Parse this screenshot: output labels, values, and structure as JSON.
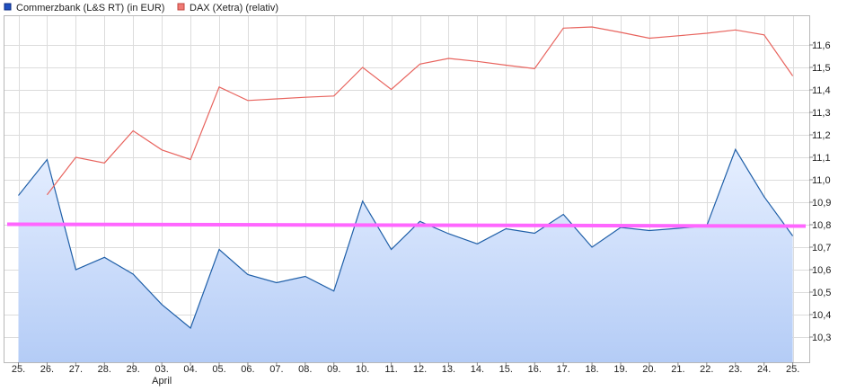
{
  "chart_data": {
    "type": "line",
    "categories": [
      "25.",
      "26.",
      "27.",
      "28.",
      "29.",
      "03.",
      "04.",
      "05.",
      "06.",
      "07.",
      "08.",
      "09.",
      "10.",
      "11.",
      "12.",
      "13.",
      "14.",
      "15.",
      "16.",
      "17.",
      "18.",
      "19.",
      "20.",
      "21.",
      "22.",
      "23.",
      "24.",
      "25."
    ],
    "month_label": "April",
    "series": [
      {
        "name": "Commerzbank (L&S RT) (in EUR)",
        "color": "#1f5fa8",
        "fill": true,
        "values": [
          10.93,
          11.09,
          10.6,
          10.655,
          10.58,
          10.445,
          10.34,
          10.69,
          10.578,
          10.542,
          10.57,
          10.505,
          10.905,
          10.69,
          10.815,
          10.76,
          10.715,
          10.782,
          10.762,
          10.846,
          10.7,
          10.788,
          10.774,
          10.784,
          10.795,
          11.135,
          10.925,
          10.75
        ]
      },
      {
        "name": "DAX (Xetra) (relativ)",
        "color": "#e8645e",
        "fill": false,
        "values": [
          null,
          10.933,
          11.1,
          11.075,
          11.218,
          11.133,
          11.09,
          11.413,
          11.353,
          11.36,
          11.367,
          11.373,
          11.5,
          11.402,
          11.515,
          11.54,
          11.527,
          11.51,
          11.495,
          11.675,
          11.68,
          11.656,
          11.63,
          11.641,
          11.652,
          11.667,
          11.645,
          11.462
        ]
      }
    ],
    "reference_line": {
      "value": 10.8,
      "color": "#ff66ff"
    },
    "y_ticks": [
      "10,3",
      "10,4",
      "10,5",
      "10,6",
      "10,7",
      "10,8",
      "10,9",
      "11,0",
      "11,1",
      "11,2",
      "11,3",
      "11,4",
      "11,5",
      "11,6"
    ],
    "ylim": [
      10.2,
      11.7
    ],
    "grid": true,
    "legend_position": "top-left",
    "y_axis_position": "right"
  }
}
